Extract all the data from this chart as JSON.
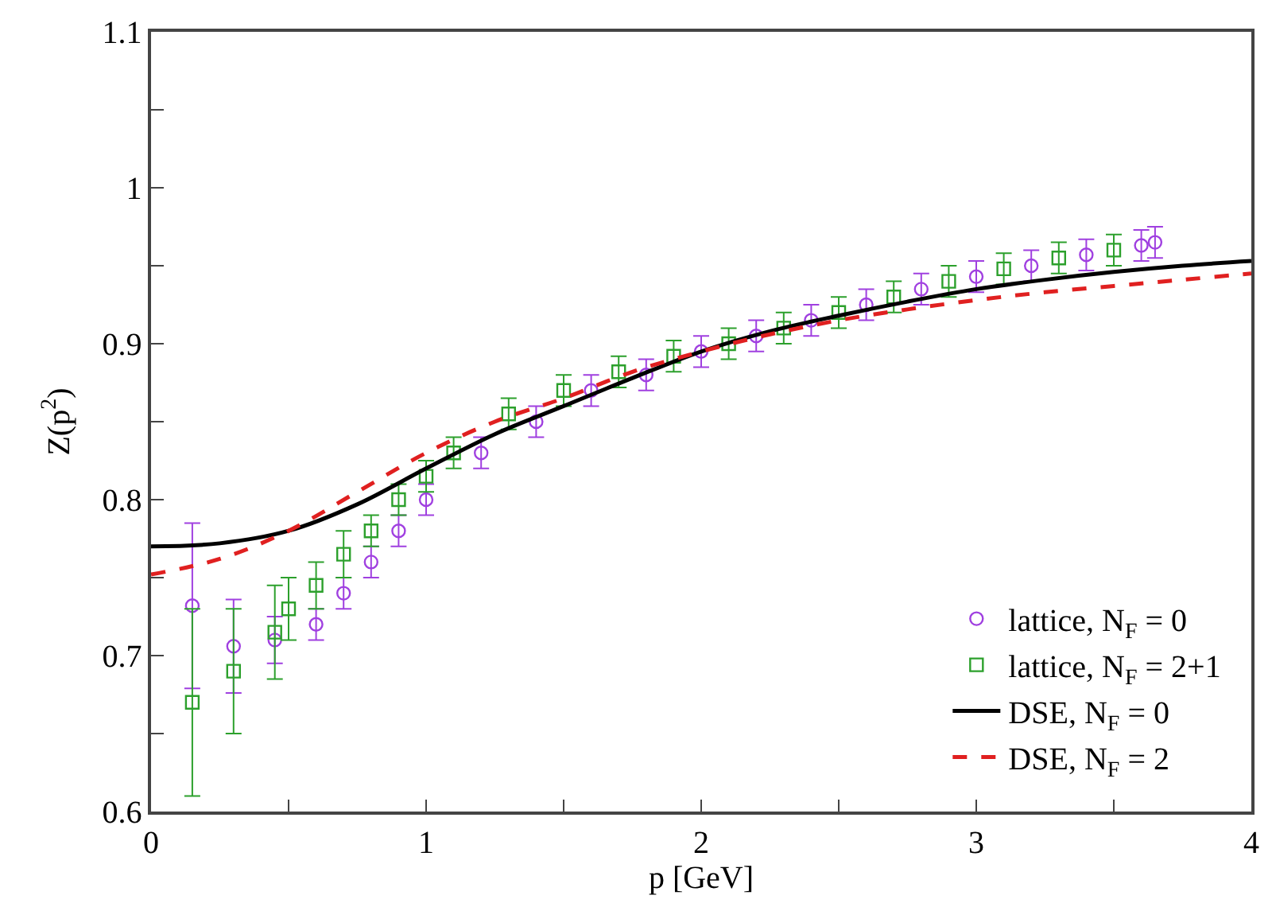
{
  "chart_data": {
    "type": "scatter",
    "xlabel": "p [GeV]",
    "ylabel": "Z(p$^{2}$)",
    "xlim": [
      0,
      4
    ],
    "ylim": [
      0.6,
      1.1
    ],
    "xticks": [
      0,
      {
        "value": 0.5,
        "label": null
      },
      1,
      {
        "value": 1.5,
        "label": null
      },
      2,
      {
        "value": 2.5,
        "label": null
      },
      3,
      {
        "value": 3.5,
        "label": null
      },
      4
    ],
    "yticks": [
      0.6,
      {
        "value": 0.65,
        "label": null
      },
      0.7,
      {
        "value": 0.75,
        "label": null
      },
      0.8,
      {
        "value": 0.85,
        "label": null
      },
      0.9,
      {
        "value": 0.95,
        "label": null
      },
      1,
      {
        "value": 1.05,
        "label": null
      },
      1.1
    ],
    "legend": "bottom right",
    "series": [
      {
        "name": "lattice, N$_{F}$ = 0",
        "marker": "circle",
        "color": "#a040e0",
        "x": [
          0.15,
          0.3,
          0.45,
          0.6,
          0.7,
          0.8,
          0.9,
          1.0,
          1.2,
          1.4,
          1.6,
          1.8,
          2.0,
          2.2,
          2.4,
          2.6,
          2.8,
          3.0,
          3.2,
          3.4,
          3.6,
          3.65
        ],
        "values": [
          0.732,
          0.706,
          0.71,
          0.72,
          0.74,
          0.76,
          0.78,
          0.8,
          0.83,
          0.85,
          0.87,
          0.88,
          0.895,
          0.905,
          0.915,
          0.925,
          0.935,
          0.943,
          0.95,
          0.957,
          0.963,
          0.965
        ],
        "errors": [
          0.053,
          0.03,
          0.015,
          0.01,
          0.01,
          0.01,
          0.01,
          0.01,
          0.01,
          0.01,
          0.01,
          0.01,
          0.01,
          0.01,
          0.01,
          0.01,
          0.01,
          0.01,
          0.01,
          0.01,
          0.01,
          0.01
        ]
      },
      {
        "name": "lattice, N$_{F}$ = 2+1",
        "marker": "square",
        "color": "#2ca02c",
        "x": [
          0.15,
          0.3,
          0.45,
          0.5,
          0.6,
          0.7,
          0.8,
          0.9,
          1.0,
          1.1,
          1.3,
          1.5,
          1.7,
          1.9,
          2.1,
          2.3,
          2.5,
          2.7,
          2.9,
          3.1,
          3.3,
          3.5
        ],
        "values": [
          0.67,
          0.69,
          0.715,
          0.73,
          0.745,
          0.765,
          0.78,
          0.8,
          0.815,
          0.83,
          0.855,
          0.87,
          0.882,
          0.892,
          0.9,
          0.91,
          0.92,
          0.93,
          0.94,
          0.948,
          0.955,
          0.96
        ],
        "errors": [
          0.06,
          0.04,
          0.03,
          0.02,
          0.015,
          0.015,
          0.01,
          0.01,
          0.01,
          0.01,
          0.01,
          0.01,
          0.01,
          0.01,
          0.01,
          0.01,
          0.01,
          0.01,
          0.01,
          0.01,
          0.01,
          0.01
        ]
      },
      {
        "name": "DSE, N$_{F}$ = 0",
        "type": "line",
        "line_style": "solid",
        "color": "#000000",
        "x": [
          0,
          0.25,
          0.5,
          0.75,
          1.0,
          1.25,
          1.5,
          1.75,
          2.0,
          2.25,
          2.5,
          2.75,
          3.0,
          3.25,
          3.5,
          3.75,
          4.0
        ],
        "values": [
          0.77,
          0.772,
          0.78,
          0.797,
          0.82,
          0.842,
          0.86,
          0.878,
          0.895,
          0.908,
          0.918,
          0.927,
          0.935,
          0.941,
          0.946,
          0.95,
          0.953
        ]
      },
      {
        "name": "DSE, N$_{F}$ = 2",
        "type": "line",
        "line_style": "dashed",
        "color": "#e02020",
        "x": [
          0,
          0.25,
          0.5,
          0.75,
          1.0,
          1.25,
          1.5,
          1.75,
          2.0,
          2.25,
          2.5,
          2.75,
          3.0,
          3.25,
          3.5,
          3.75,
          4.0
        ],
        "values": [
          0.752,
          0.762,
          0.78,
          0.805,
          0.83,
          0.85,
          0.865,
          0.882,
          0.895,
          0.906,
          0.915,
          0.922,
          0.928,
          0.933,
          0.937,
          0.941,
          0.945
        ]
      }
    ]
  }
}
